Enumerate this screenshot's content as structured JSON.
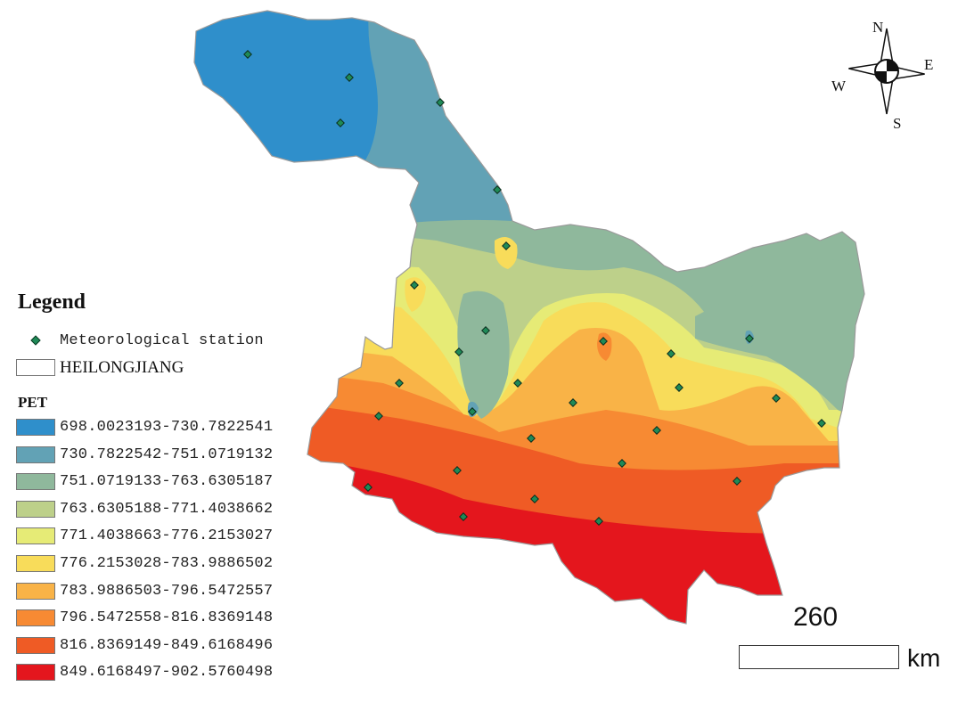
{
  "legend": {
    "title": "Legend",
    "station_label": "Meteorological station",
    "province_label": "HEILONGJIANG",
    "pet_title": "PET",
    "classes": [
      {
        "label": "698.0023193-730.7822541",
        "color": "#2f8fcb"
      },
      {
        "label": "730.7822542-751.0719132",
        "color": "#62a2b5"
      },
      {
        "label": "751.0719133-763.6305187",
        "color": "#8fb89c"
      },
      {
        "label": "763.6305188-771.4038662",
        "color": "#bdd08a"
      },
      {
        "label": "771.4038663-776.2153027",
        "color": "#e6eb76"
      },
      {
        "label": "776.2153028-783.9886502",
        "color": "#f8dc5a"
      },
      {
        "label": "783.9886503-796.5472557",
        "color": "#f9b347"
      },
      {
        "label": "796.5472558-816.8369148",
        "color": "#f78a33"
      },
      {
        "label": "816.8369149-849.6168496",
        "color": "#ef5b25"
      },
      {
        "label": "849.6168497-902.5760498",
        "color": "#e4161d"
      }
    ]
  },
  "scale_bar": {
    "value": "260",
    "unit": "km"
  },
  "compass": {
    "n": "N",
    "s": "S",
    "e": "E",
    "w": "W"
  }
}
